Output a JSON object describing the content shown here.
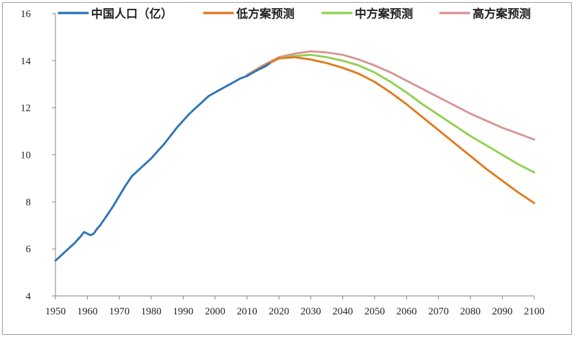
{
  "chart_data": {
    "type": "line",
    "title": "",
    "xlabel": "",
    "ylabel": "",
    "xlim": [
      1950,
      2100
    ],
    "ylim": [
      4,
      16
    ],
    "x_ticks": [
      "1950",
      "1960",
      "1970",
      "1980",
      "1990",
      "2000",
      "2010",
      "2020",
      "2030",
      "2040",
      "2050",
      "2060",
      "2070",
      "2080",
      "2090",
      "2100"
    ],
    "y_ticks": [
      "4",
      "6",
      "8",
      "10",
      "12",
      "14",
      "16"
    ],
    "grid": false,
    "legend_position": "top",
    "series": [
      {
        "name": "中国人口（亿）",
        "color": "#2E75B6",
        "points": [
          [
            1950,
            5.5
          ],
          [
            1952,
            5.75
          ],
          [
            1954,
            6.0
          ],
          [
            1956,
            6.25
          ],
          [
            1958,
            6.55
          ],
          [
            1959,
            6.72
          ],
          [
            1960,
            6.65
          ],
          [
            1961,
            6.58
          ],
          [
            1962,
            6.65
          ],
          [
            1963,
            6.85
          ],
          [
            1964,
            7.0
          ],
          [
            1966,
            7.4
          ],
          [
            1968,
            7.8
          ],
          [
            1970,
            8.25
          ],
          [
            1972,
            8.7
          ],
          [
            1974,
            9.1
          ],
          [
            1976,
            9.35
          ],
          [
            1978,
            9.6
          ],
          [
            1980,
            9.85
          ],
          [
            1982,
            10.15
          ],
          [
            1984,
            10.45
          ],
          [
            1986,
            10.8
          ],
          [
            1988,
            11.15
          ],
          [
            1990,
            11.45
          ],
          [
            1992,
            11.75
          ],
          [
            1994,
            12.0
          ],
          [
            1996,
            12.25
          ],
          [
            1998,
            12.5
          ],
          [
            2000,
            12.65
          ],
          [
            2002,
            12.8
          ],
          [
            2004,
            12.95
          ],
          [
            2006,
            13.1
          ],
          [
            2008,
            13.25
          ],
          [
            2010,
            13.35
          ],
          [
            2012,
            13.5
          ],
          [
            2014,
            13.65
          ],
          [
            2016,
            13.78
          ],
          [
            2017,
            13.88
          ]
        ]
      },
      {
        "name": "低方案预测",
        "color": "#E07B22",
        "points": [
          [
            2010,
            13.35
          ],
          [
            2015,
            13.75
          ],
          [
            2020,
            14.1
          ],
          [
            2025,
            14.15
          ],
          [
            2030,
            14.05
          ],
          [
            2035,
            13.9
          ],
          [
            2040,
            13.7
          ],
          [
            2045,
            13.45
          ],
          [
            2050,
            13.1
          ],
          [
            2055,
            12.65
          ],
          [
            2060,
            12.15
          ],
          [
            2065,
            11.6
          ],
          [
            2070,
            11.05
          ],
          [
            2075,
            10.5
          ],
          [
            2080,
            9.95
          ],
          [
            2085,
            9.4
          ],
          [
            2090,
            8.9
          ],
          [
            2095,
            8.4
          ],
          [
            2100,
            7.95
          ]
        ]
      },
      {
        "name": "中方案预测",
        "color": "#92D050",
        "points": [
          [
            2010,
            13.35
          ],
          [
            2015,
            13.75
          ],
          [
            2020,
            14.1
          ],
          [
            2025,
            14.2
          ],
          [
            2030,
            14.25
          ],
          [
            2035,
            14.15
          ],
          [
            2040,
            14.0
          ],
          [
            2045,
            13.8
          ],
          [
            2050,
            13.5
          ],
          [
            2055,
            13.1
          ],
          [
            2060,
            12.65
          ],
          [
            2065,
            12.15
          ],
          [
            2070,
            11.7
          ],
          [
            2075,
            11.25
          ],
          [
            2080,
            10.8
          ],
          [
            2085,
            10.4
          ],
          [
            2090,
            10.0
          ],
          [
            2095,
            9.6
          ],
          [
            2100,
            9.25
          ]
        ]
      },
      {
        "name": "高方案预测",
        "color": "#D99594",
        "points": [
          [
            2010,
            13.4
          ],
          [
            2015,
            13.8
          ],
          [
            2020,
            14.15
          ],
          [
            2025,
            14.3
          ],
          [
            2030,
            14.4
          ],
          [
            2035,
            14.35
          ],
          [
            2040,
            14.25
          ],
          [
            2045,
            14.05
          ],
          [
            2050,
            13.8
          ],
          [
            2055,
            13.5
          ],
          [
            2060,
            13.15
          ],
          [
            2065,
            12.8
          ],
          [
            2070,
            12.45
          ],
          [
            2075,
            12.1
          ],
          [
            2080,
            11.75
          ],
          [
            2085,
            11.45
          ],
          [
            2090,
            11.15
          ],
          [
            2095,
            10.9
          ],
          [
            2100,
            10.65
          ]
        ]
      }
    ]
  }
}
